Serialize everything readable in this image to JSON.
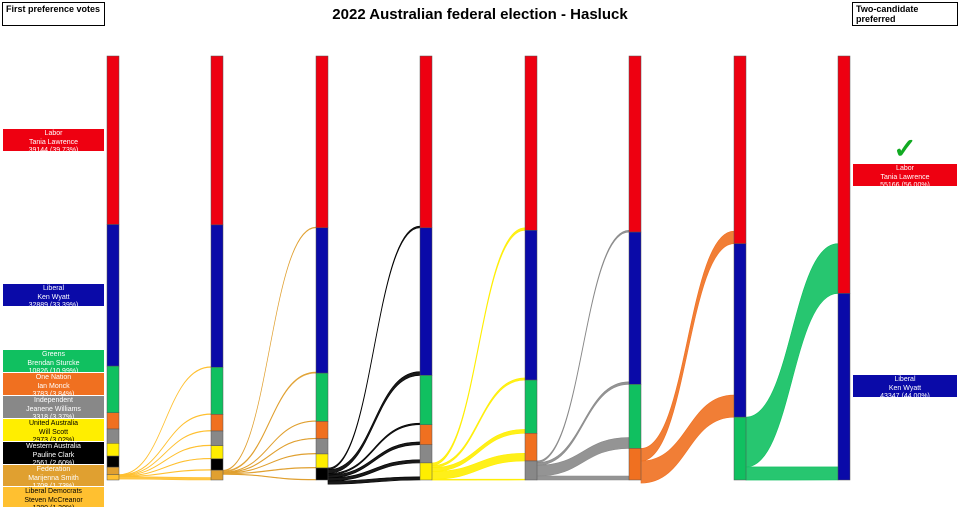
{
  "title": "2022 Australian federal election - Hasluck",
  "left_box": "First preference votes",
  "right_box": "Two-candidate preferred",
  "winner_mark": "✓",
  "chart_data": {
    "type": "sankey",
    "title": "2022 Australian federal election - Hasluck",
    "candidates": [
      {
        "party": "Labor",
        "name": "Tania Lawrence",
        "votes": "39144 (39.73%)",
        "value": 39144,
        "color": "#ee0011"
      },
      {
        "party": "Liberal",
        "name": "Ken Wyatt",
        "votes": "32889 (33.39%)",
        "value": 32889,
        "color": "#0a0aa8"
      },
      {
        "party": "Greens",
        "name": "Brendan Sturcke",
        "votes": "10826 (10.99%)",
        "value": 10826,
        "color": "#10c060"
      },
      {
        "party": "One Nation",
        "name": "Ian Monck",
        "votes": "3783 (3.84%)",
        "value": 3783,
        "color": "#f07020"
      },
      {
        "party": "Independent",
        "name": "Jeanene Williams",
        "votes": "3318 (3.37%)",
        "value": 3318,
        "color": "#888888"
      },
      {
        "party": "United Australia",
        "name": "Will Scott",
        "votes": "2973 (3.02%)",
        "value": 2973,
        "color": "#ffee00"
      },
      {
        "party": "Western Australia",
        "name": "Pauline Clark",
        "votes": "2561 (2.60%)",
        "value": 2561,
        "color": "#000000"
      },
      {
        "party": "Federation",
        "name": "Marijenna Smith",
        "votes": "1708 (1.73%)",
        "value": 1708,
        "color": "#e0a030"
      },
      {
        "party": "Liberal Democrats",
        "name": "Steven McCreanor",
        "votes": "1280 (1.30%)",
        "value": 1280,
        "color": "#ffc030"
      }
    ],
    "final": [
      {
        "party": "Labor",
        "name": "Tania Lawrence",
        "votes": "55166 (56.00%)",
        "value": 55166,
        "color": "#ee0011",
        "winner": true
      },
      {
        "party": "Liberal",
        "name": "Ken Wyatt",
        "votes": "43347 (44.00%)",
        "value": 43347,
        "color": "#0a0aa8",
        "winner": false
      }
    ],
    "rounds": [
      [
        39144,
        32889,
        10826,
        3783,
        3318,
        2973,
        2561,
        1708,
        1280
      ],
      [
        39144,
        33000,
        10926,
        3853,
        3390,
        3060,
        2620,
        2280,
        0
      ],
      [
        39299,
        33250,
        11040,
        3970,
        3480,
        3210,
        2750,
        0,
        0
      ],
      [
        39700,
        34100,
        11400,
        4620,
        4200,
        3950,
        0,
        0,
        0
      ],
      [
        40300,
        34600,
        12300,
        6400,
        4400,
        0,
        0,
        0,
        0
      ],
      [
        40700,
        35200,
        14800,
        7300,
        0,
        0,
        0,
        0,
        0
      ],
      [
        43600,
        40300,
        14600,
        0,
        0,
        0,
        0,
        0,
        0
      ],
      [
        55166,
        43347,
        0,
        0,
        0,
        0,
        0,
        0,
        0
      ]
    ]
  }
}
